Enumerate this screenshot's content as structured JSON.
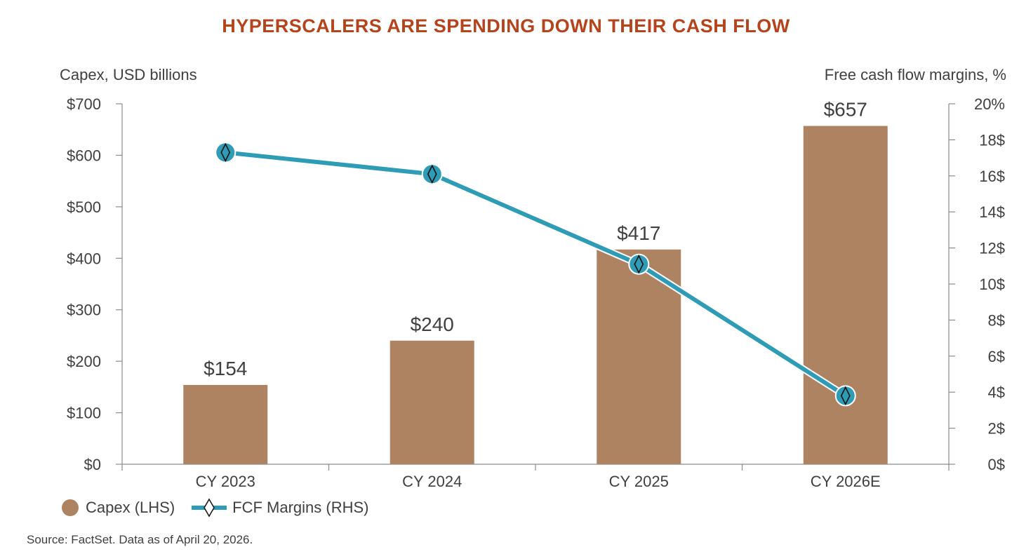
{
  "chart_data": {
    "type": "bar",
    "title": "HYPERSCALERS ARE SPENDING DOWN THEIR CASH FLOW",
    "categories": [
      "CY 2023",
      "CY 2024",
      "CY 2025",
      "CY 2026E"
    ],
    "ylabel_left": "Capex, USD billions",
    "ylabel_right": "Free cash flow margins, %",
    "ylim_left": [
      0,
      700
    ],
    "ylim_right": [
      0,
      20
    ],
    "left_ticks": [
      "$0",
      "$100",
      "$200",
      "$300",
      "$400",
      "$500",
      "$600",
      "$700"
    ],
    "right_ticks": [
      "0$",
      "2$",
      "4$",
      "6$",
      "8$",
      "10$",
      "12$",
      "14$",
      "16$",
      "18$",
      "20%"
    ],
    "series": [
      {
        "name": "Capex (LHS)",
        "kind": "bar",
        "axis": "left",
        "color": "#ad8361",
        "values": [
          154,
          240,
          417,
          657
        ],
        "labels": [
          "$154",
          "$240",
          "$417",
          "$657"
        ]
      },
      {
        "name": "FCF Margins (RHS)",
        "kind": "line",
        "axis": "right",
        "color": "#2e9cb5",
        "values": [
          17.3,
          16.1,
          11.1,
          3.8
        ]
      }
    ],
    "legend_position": "bottom-left",
    "grid": false,
    "source": "Source: FactSet. Data as of April 20, 2026."
  }
}
